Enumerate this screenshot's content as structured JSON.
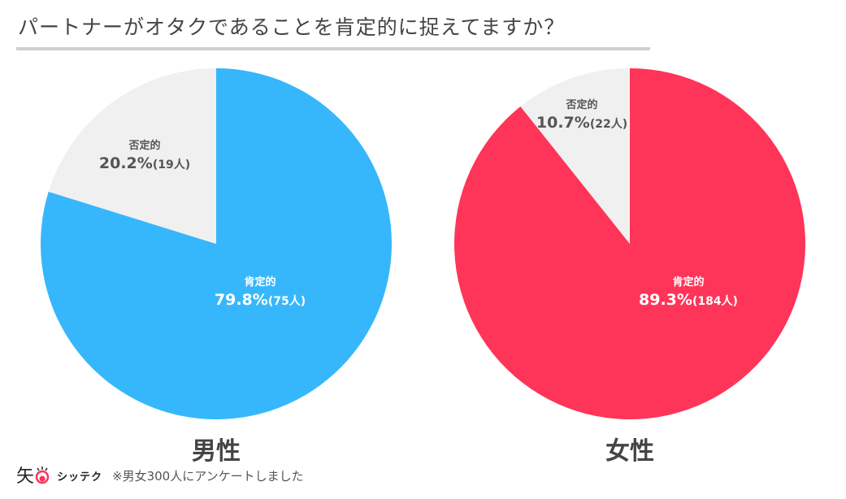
{
  "title": "パートナーがオタクであることを肯定的に捉えてますか？",
  "chart_data": [
    {
      "type": "pie",
      "title": "男性",
      "slices": [
        {
          "label": "肯定的",
          "percent": 79.8,
          "count_text": "(75人)",
          "color": "#37b7fb"
        },
        {
          "label": "否定的",
          "percent": 20.2,
          "count_text": "(19人)",
          "color": "#f0f0f0"
        }
      ]
    },
    {
      "type": "pie",
      "title": "女性",
      "slices": [
        {
          "label": "肯定的",
          "percent": 89.3,
          "count_text": "(184人)",
          "color": "#ff3459"
        },
        {
          "label": "否定的",
          "percent": 10.7,
          "count_text": "(22人)",
          "color": "#f0f0f0"
        }
      ]
    }
  ],
  "footer": {
    "logo_text": "シッテク",
    "note": "※男女300人にアンケートしました"
  }
}
